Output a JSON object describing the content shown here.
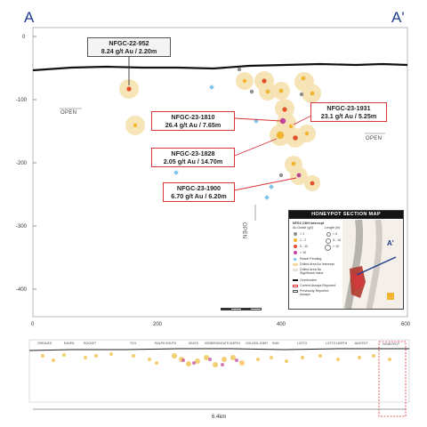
{
  "section": {
    "left_label": "A",
    "right_label": "A'"
  },
  "axes": {
    "y_ticks": [
      "0",
      "-100",
      "-200",
      "-300",
      "-400"
    ],
    "x_ticks": [
      "0",
      "200",
      "400",
      "600"
    ]
  },
  "open_labels": {
    "left": "OPEN",
    "right": "OPEN",
    "bottom": "OPEN"
  },
  "callouts": [
    {
      "hole": "NFGC-22-952",
      "result": "8.24 g/t Au / 2.20m",
      "style": "grey"
    },
    {
      "hole": "NFGC-23-1810",
      "result": "26.4 g/t Au / 7.65m",
      "style": "red"
    },
    {
      "hole": "NFGC-23-1931",
      "result": "23.1 g/t Au / 5.25m",
      "style": "red"
    },
    {
      "hole": "NFGC-23-1828",
      "result": "2.05 g/t Au / 14.70m",
      "style": "red"
    },
    {
      "hole": "NFGC-23-1900",
      "result": "6.70 g/t Au / 6.20m",
      "style": "red"
    }
  ],
  "legend": {
    "title": "HONEYPOT SECTION MAP",
    "heading_grade": "NFGC DDH Intercept",
    "heading_grade_sub": "Au Grade (g/t)",
    "heading_length": "Length (m)",
    "grades": [
      "< 1",
      "1 - 2",
      "3 - 10",
      "> 10"
    ],
    "lengths": [
      "< 5",
      "5 - 10",
      "> 10"
    ],
    "items": [
      "Result Pending",
      "Drilled Area Au Intercept",
      "Drilled Area No Significant Value",
      "Overburden",
      "Current Assays Reported",
      "Previously Reported Assays"
    ],
    "inset_label": "A'",
    "grade_colors": [
      "#8e8e8e",
      "#f2b531",
      "#e4502b",
      "#c0449a"
    ],
    "pending_color": "#7fc4ec"
  },
  "long_section": {
    "zones": [
      "GREAVES",
      "RAVEN",
      "ROCKET",
      "TCH",
      "RALPH SOUTH",
      "KEATS",
      "ICEBERG/KEATS NORTH",
      "GOLDEN JOINT",
      "KWK",
      "LOTTO",
      "LOTTO NORTH",
      "JACKPOT",
      "HONEYPOT"
    ],
    "length_label": "6.4km"
  }
}
